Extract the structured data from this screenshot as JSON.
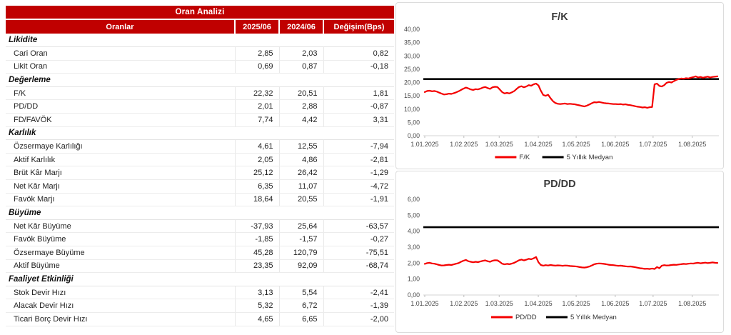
{
  "colors": {
    "header_red": "#C00000",
    "line_red": "#F40000",
    "median_black": "#000000",
    "grid_gray": "#D6D6D6"
  },
  "table": {
    "title": "Oran Analizi",
    "columns": [
      "Oranlar",
      "2025/06",
      "2024/06",
      "Değişim(Bps)"
    ],
    "sections": [
      {
        "name": "Likidite",
        "rows": [
          {
            "label": "Cari Oran",
            "v1": "2,85",
            "v2": "2,03",
            "chg": "0,82"
          },
          {
            "label": "Likit Oran",
            "v1": "0,69",
            "v2": "0,87",
            "chg": "-0,18"
          }
        ]
      },
      {
        "name": "Değerleme",
        "rows": [
          {
            "label": "F/K",
            "v1": "22,32",
            "v2": "20,51",
            "chg": "1,81"
          },
          {
            "label": "PD/DD",
            "v1": "2,01",
            "v2": "2,88",
            "chg": "-0,87"
          },
          {
            "label": "FD/FAVÖK",
            "v1": "7,74",
            "v2": "4,42",
            "chg": "3,31"
          }
        ]
      },
      {
        "name": "Karlılık",
        "rows": [
          {
            "label": "Özsermaye Karlılığı",
            "v1": "4,61",
            "v2": "12,55",
            "chg": "-7,94"
          },
          {
            "label": "Aktif Karlılık",
            "v1": "2,05",
            "v2": "4,86",
            "chg": "-2,81"
          },
          {
            "label": "Brüt Kâr Marjı",
            "v1": "25,12",
            "v2": "26,42",
            "chg": "-1,29"
          },
          {
            "label": "Net Kâr Marjı",
            "v1": "6,35",
            "v2": "11,07",
            "chg": "-4,72"
          },
          {
            "label": "Favök Marjı",
            "v1": "18,64",
            "v2": "20,55",
            "chg": "-1,91"
          }
        ]
      },
      {
        "name": "Büyüme",
        "rows": [
          {
            "label": "Net Kâr Büyüme",
            "v1": "-37,93",
            "v2": "25,64",
            "chg": "-63,57"
          },
          {
            "label": "Favök Büyüme",
            "v1": "-1,85",
            "v2": "-1,57",
            "chg": "-0,27"
          },
          {
            "label": "Özsermaye Büyüme",
            "v1": "45,28",
            "v2": "120,79",
            "chg": "-75,51"
          },
          {
            "label": "Aktif Büyüme",
            "v1": "23,35",
            "v2": "92,09",
            "chg": "-68,74"
          }
        ]
      },
      {
        "name": "Faaliyet Etkinliği",
        "rows": [
          {
            "label": "Stok Devir Hızı",
            "v1": "3,13",
            "v2": "5,54",
            "chg": "-2,41"
          },
          {
            "label": "Alacak Devir Hızı",
            "v1": "5,32",
            "v2": "6,72",
            "chg": "-1,39"
          },
          {
            "label": "Ticari Borç Devir Hızı",
            "v1": "4,65",
            "v2": "6,65",
            "chg": "-2,00"
          }
        ]
      }
    ]
  },
  "chart_data": [
    {
      "id": "fk",
      "type": "line",
      "title": "F/K",
      "ylim": [
        0,
        40
      ],
      "y_ticks": [
        "40,00",
        "35,00",
        "30,00",
        "25,00",
        "20,00",
        "15,00",
        "10,00",
        "5,00",
        "0,00"
      ],
      "x_ticks": [
        "1.01.2025",
        "1.02.2025",
        "1.03.2025",
        "1.04.2025",
        "1.05.2025",
        "1.06.2025",
        "1.07.2025",
        "1.08.2025"
      ],
      "grid": false,
      "legend_position": "bottom",
      "series": [
        {
          "name": "F/K",
          "color": "#F40000",
          "values": [
            16.4,
            16.8,
            16.9,
            16.7,
            16.8,
            16.6,
            16.2,
            15.8,
            15.5,
            15.6,
            15.8,
            15.7,
            16.0,
            16.3,
            16.7,
            17.2,
            17.7,
            18.1,
            17.8,
            17.4,
            17.2,
            17.5,
            17.4,
            17.7,
            18.1,
            18.3,
            17.9,
            17.6,
            18.2,
            18.4,
            18.3,
            17.4,
            16.4,
            15.9,
            16.1,
            15.9,
            16.3,
            16.8,
            17.6,
            18.3,
            18.6,
            18.2,
            18.5,
            19.0,
            18.8,
            19.3,
            19.6,
            18.9,
            16.9,
            15.3,
            15.0,
            15.4,
            14.1,
            13.0,
            12.3,
            12.0,
            11.9,
            12.0,
            12.1,
            11.9,
            12.0,
            11.9,
            11.8,
            11.6,
            11.4,
            11.2,
            11.0,
            11.3,
            11.7,
            12.2,
            12.6,
            12.5,
            12.7,
            12.5,
            12.3,
            12.2,
            12.1,
            12.0,
            11.9,
            11.9,
            11.8,
            11.9,
            11.7,
            11.8,
            11.6,
            11.5,
            11.3,
            11.1,
            10.9,
            10.8,
            10.6,
            10.7,
            10.5,
            10.7,
            10.8,
            19.3,
            19.6,
            18.7,
            18.5,
            19.0,
            19.9,
            20.2,
            20.0,
            20.5,
            21.0,
            21.3,
            21.5,
            21.4,
            21.6,
            21.5,
            21.8,
            22.0,
            22.3,
            21.9,
            22.1,
            21.8,
            22.0,
            22.2,
            21.9,
            22.1,
            22.2,
            22.32
          ]
        },
        {
          "name": "5 Yıllık Medyan",
          "color": "#000000",
          "median": 21.3
        }
      ]
    },
    {
      "id": "pddd",
      "type": "line",
      "title": "PD/DD",
      "ylim": [
        0,
        6
      ],
      "y_ticks": [
        "6,00",
        "5,00",
        "4,00",
        "3,00",
        "2,00",
        "1,00",
        "0,00"
      ],
      "x_ticks": [
        "1.01.2025",
        "1.02.2025",
        "1.03.2025",
        "1.04.2025",
        "1.05.2025",
        "1.06.2025",
        "1.07.2025",
        "1.08.2025"
      ],
      "grid": false,
      "legend_position": "bottom",
      "series": [
        {
          "name": "PD/DD",
          "color": "#F40000",
          "values": [
            1.95,
            2.0,
            2.02,
            1.98,
            1.96,
            1.92,
            1.88,
            1.85,
            1.86,
            1.88,
            1.9,
            1.88,
            1.92,
            1.96,
            2.0,
            2.08,
            2.15,
            2.2,
            2.12,
            2.08,
            2.05,
            2.08,
            2.06,
            2.1,
            2.14,
            2.17,
            2.12,
            2.08,
            2.15,
            2.18,
            2.17,
            2.08,
            1.96,
            1.92,
            1.95,
            1.93,
            1.97,
            2.02,
            2.1,
            2.18,
            2.22,
            2.17,
            2.21,
            2.27,
            2.24,
            2.3,
            2.38,
            2.05,
            1.88,
            1.84,
            1.87,
            1.85,
            1.88,
            1.86,
            1.84,
            1.86,
            1.85,
            1.83,
            1.85,
            1.84,
            1.82,
            1.81,
            1.8,
            1.78,
            1.75,
            1.73,
            1.72,
            1.74,
            1.78,
            1.85,
            1.92,
            1.96,
            1.98,
            1.97,
            1.95,
            1.93,
            1.9,
            1.88,
            1.87,
            1.85,
            1.83,
            1.84,
            1.82,
            1.8,
            1.78,
            1.79,
            1.77,
            1.74,
            1.71,
            1.68,
            1.66,
            1.64,
            1.65,
            1.63,
            1.66,
            1.63,
            1.75,
            1.68,
            1.84,
            1.87,
            1.85,
            1.86,
            1.88,
            1.9,
            1.89,
            1.91,
            1.93,
            1.95,
            1.94,
            1.96,
            1.98,
            1.97,
            2.0,
            2.02,
            1.99,
            2.01,
            2.03,
            2.0,
            2.02,
            2.04,
            2.02,
            2.01
          ]
        },
        {
          "name": "5 Yıllık Medyan",
          "color": "#000000",
          "median": 4.25
        }
      ]
    }
  ]
}
